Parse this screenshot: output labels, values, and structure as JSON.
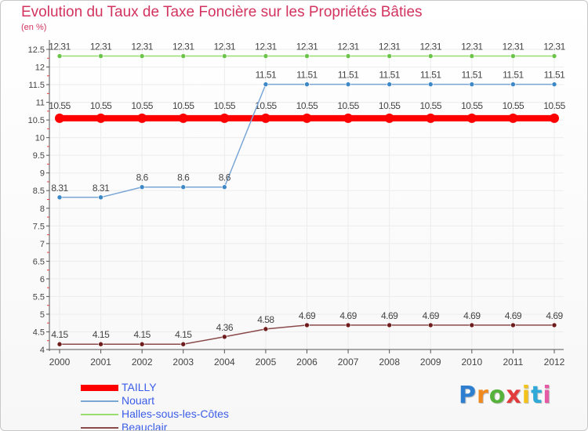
{
  "chart_data": {
    "type": "line",
    "title": "Evolution du Taux de Taxe Foncière sur les Propriétés Bâties",
    "unit_label": "(en %)",
    "x": [
      "2000",
      "2001",
      "2002",
      "2003",
      "2004",
      "2005",
      "2006",
      "2007",
      "2008",
      "2009",
      "2010",
      "2011",
      "2012"
    ],
    "y_ticks": [
      "4",
      "4.5",
      "5",
      "5.5",
      "6",
      "6.5",
      "7",
      "7.5",
      "8",
      "8.5",
      "9",
      "9.5",
      "10",
      "10.5",
      "11",
      "11.5",
      "12",
      "12.5"
    ],
    "ylim": [
      4,
      12.5
    ],
    "series": [
      {
        "name": "TAILLY",
        "color": "#ff0000",
        "values": [
          10.55,
          10.55,
          10.55,
          10.55,
          10.55,
          10.55,
          10.55,
          10.55,
          10.55,
          10.55,
          10.55,
          10.55,
          10.55
        ],
        "labels": [
          "10.55",
          "10.55",
          "10.55",
          "10.55",
          "10.55",
          "10.55",
          "10.55",
          "10.55",
          "10.55",
          "10.55",
          "10.55",
          "10.55",
          "10.55"
        ]
      },
      {
        "name": "Nouart",
        "color": "#7aa6d6",
        "marker": "#3d88c6",
        "values": [
          8.31,
          8.31,
          8.6,
          8.6,
          8.6,
          11.51,
          11.51,
          11.51,
          11.51,
          11.51,
          11.51,
          11.51,
          11.51
        ],
        "labels": [
          "8.31",
          "8.31",
          "8.6",
          "8.6",
          "8.6",
          "11.51",
          "11.51",
          "11.51",
          "11.51",
          "11.51",
          "11.51",
          "11.51",
          "11.51"
        ]
      },
      {
        "name": "Halles-sous-les-Côtes",
        "color": "#98dd6e",
        "marker": "#6cc44a",
        "values": [
          12.31,
          12.31,
          12.31,
          12.31,
          12.31,
          12.31,
          12.31,
          12.31,
          12.31,
          12.31,
          12.31,
          12.31,
          12.31
        ],
        "labels": [
          "12.31",
          "12.31",
          "12.31",
          "12.31",
          "12.31",
          "12.31",
          "12.31",
          "12.31",
          "12.31",
          "12.31",
          "12.31",
          "12.31",
          "12.31"
        ]
      },
      {
        "name": "Beauclair",
        "color": "#8a4a4a",
        "marker": "#6e1c1c",
        "values": [
          4.15,
          4.15,
          4.15,
          4.15,
          4.36,
          4.58,
          4.69,
          4.69,
          4.69,
          4.69,
          4.69,
          4.69,
          4.69
        ],
        "labels": [
          "4.15",
          "4.15",
          "4.15",
          "4.15",
          "4.36",
          "4.58",
          "4.69",
          "4.69",
          "4.69",
          "4.69",
          "4.69",
          "4.69",
          "4.69"
        ]
      }
    ]
  },
  "legend": {
    "items": [
      {
        "label": "TAILLY",
        "color": "#ff0000"
      },
      {
        "label": "Nouart",
        "color": "#7aa6d6"
      },
      {
        "label": "Halles-sous-les-Côtes",
        "color": "#98dd6e"
      },
      {
        "label": "Beauclair",
        "color": "#8a4a4a"
      }
    ]
  },
  "brand": {
    "letters": [
      "P",
      "r",
      "o",
      "x",
      "i",
      "t",
      "i"
    ],
    "colors": [
      "#2f7fd0",
      "#f08a1e",
      "#57b23c",
      "#e23b3b",
      "#f3c21b",
      "#2fa9d8",
      "#e55aa5"
    ]
  }
}
